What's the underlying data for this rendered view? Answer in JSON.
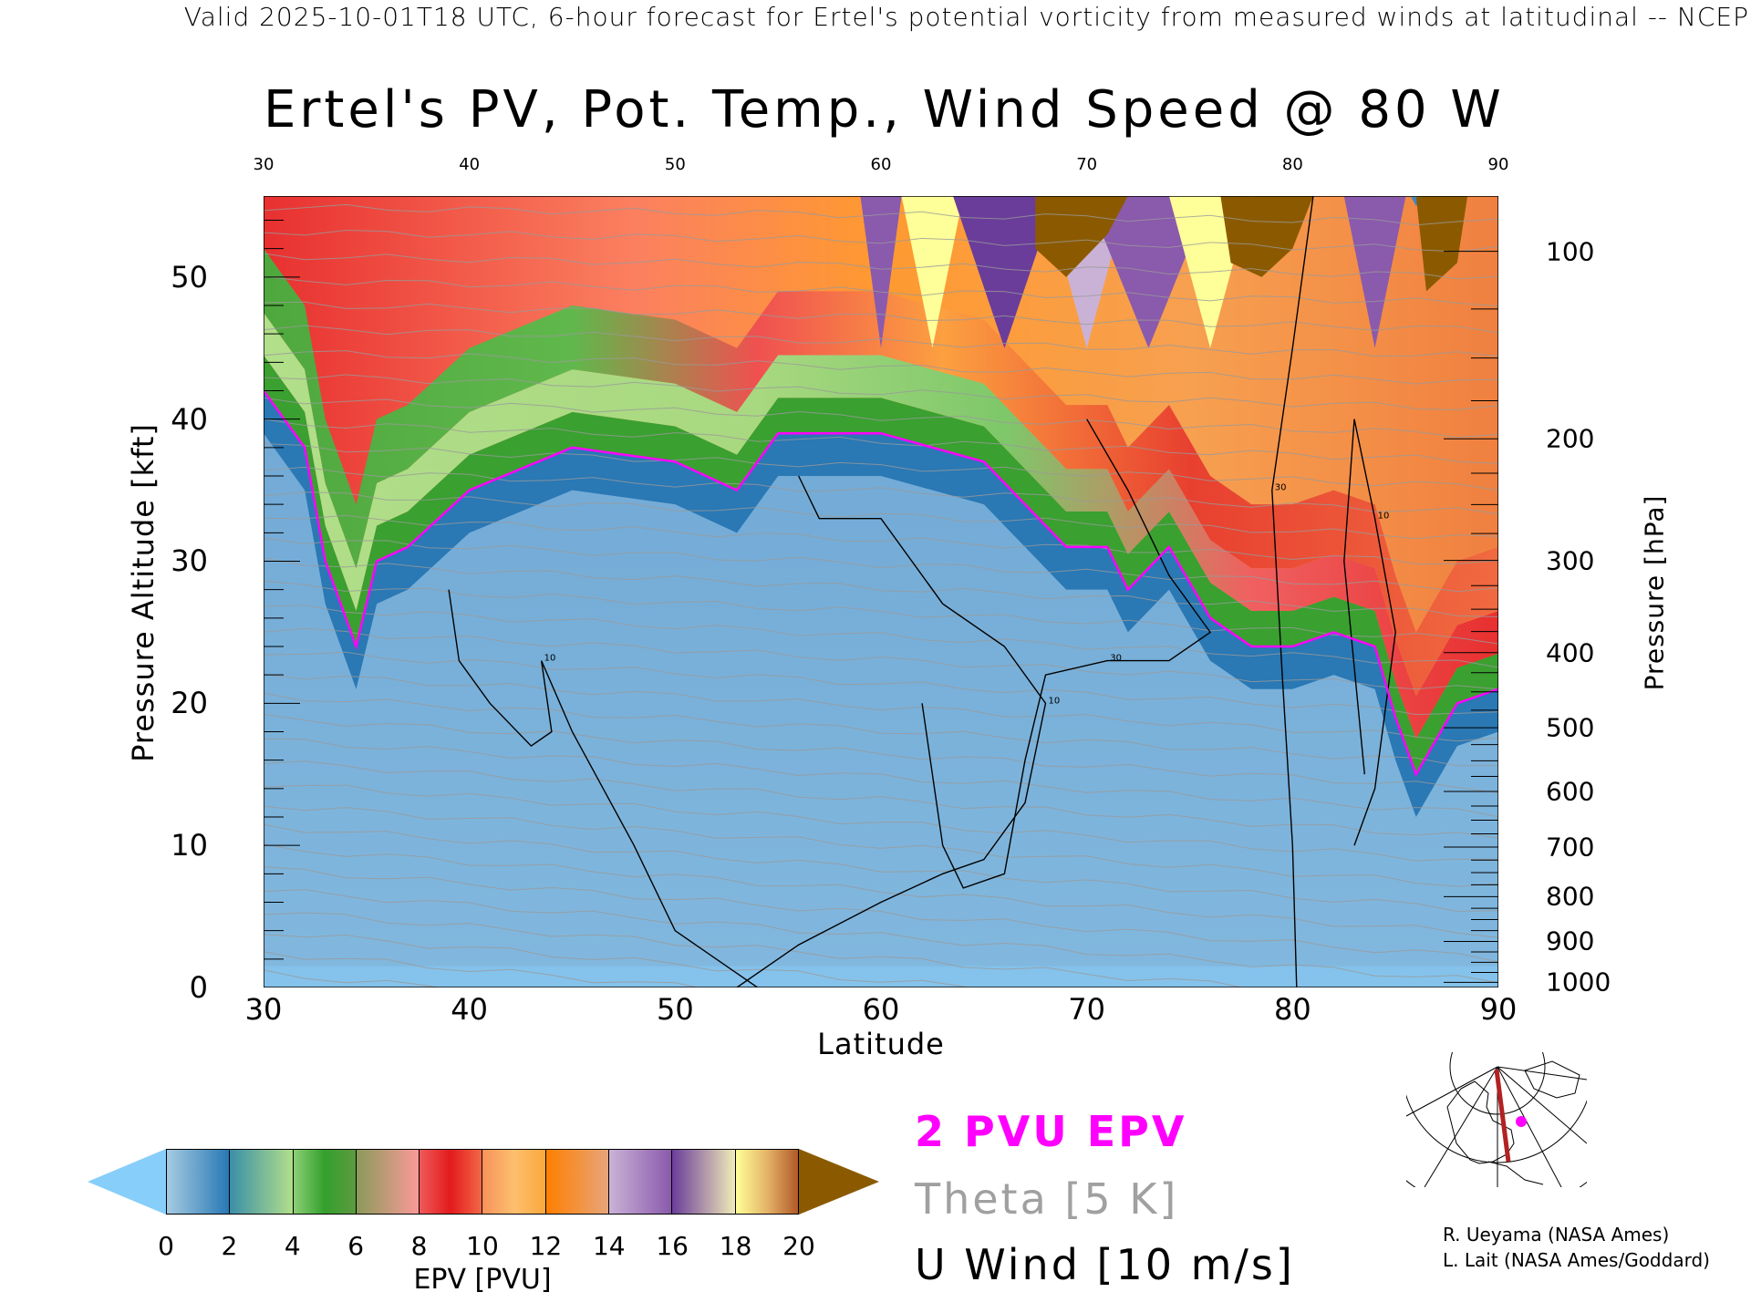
{
  "header": "Valid 2025-10-01T18 UTC, 6-hour forecast for Ertel's potential vorticity from measured winds at latitudinal -- NCEP",
  "chart_data": {
    "type": "heatmap",
    "title": "Ertel's PV, Pot. Temp., Wind Speed @ 80 W",
    "xlabel": "Latitude",
    "ylabel": "Pressure Altitude [kft]",
    "y2label": "Pressure [hPa]",
    "xlim": [
      30,
      90
    ],
    "ylim": [
      0,
      55.7
    ],
    "x_ticks": [
      "30",
      "40",
      "50",
      "60",
      "70",
      "80",
      "90"
    ],
    "top_ticks": [
      "30",
      "40",
      "50",
      "60",
      "70",
      "80",
      "90"
    ],
    "y_ticks": [
      "0",
      "10",
      "20",
      "30",
      "40",
      "50"
    ],
    "pressure_ticks": [
      "100",
      "200",
      "300",
      "400",
      "500",
      "600",
      "700",
      "800",
      "900",
      "1000"
    ],
    "colorbar": {
      "label": "EPV [PVU]",
      "ticks": [
        "0",
        "2",
        "4",
        "6",
        "8",
        "10",
        "12",
        "14",
        "16",
        "18",
        "20"
      ],
      "under_color": "#87cefa",
      "over_color": "#8b5a00",
      "segments": [
        [
          "#a6cbe2",
          "#2878b5"
        ],
        [
          "#3a8fa8",
          "#b2df8a"
        ],
        [
          "#8ccf76",
          "#33a02c",
          "#5d9a40"
        ],
        [
          "#8a9a5a",
          "#fb9a99"
        ],
        [
          "#ef5a5a",
          "#e31a1c",
          "#f26848"
        ],
        [
          "#f7925a",
          "#fdbf6f",
          "#fca83c"
        ],
        [
          "#ff7f00",
          "#e7a57a"
        ],
        [
          "#cab2d6",
          "#8a5aac"
        ],
        [
          "#6a3d9a",
          "#f1ebb8"
        ],
        [
          "#ffff99",
          "#e4b468",
          "#b15928"
        ]
      ]
    },
    "tropopause_2pvu": {
      "lat": [
        30,
        32,
        33,
        34.5,
        35.5,
        37,
        40,
        45,
        50,
        53,
        55,
        60,
        65,
        67,
        69,
        71,
        72,
        74,
        76,
        78,
        80,
        82,
        84,
        85,
        86,
        88,
        90
      ],
      "kft": [
        42,
        38,
        30,
        24,
        30,
        31,
        35,
        38,
        37,
        35,
        39,
        39,
        37,
        34,
        31,
        31,
        28,
        31,
        26,
        24,
        24,
        25,
        24,
        19,
        15,
        20,
        21
      ]
    },
    "u_wind_contours": [
      {
        "level": "10",
        "lat": [
          39,
          39.5,
          41,
          43,
          44,
          43.5,
          45,
          48,
          50,
          53,
          54
        ],
        "kft": [
          28,
          23,
          20,
          17,
          18,
          23,
          18,
          10,
          4,
          1,
          0
        ]
      },
      {
        "level": "10",
        "lat": [
          53,
          56,
          60,
          63,
          65,
          67,
          68,
          66,
          63,
          60,
          57,
          56
        ],
        "kft": [
          0,
          3,
          6,
          8,
          9,
          13,
          20,
          24,
          27,
          33,
          33,
          36
        ]
      },
      {
        "level": "30",
        "lat": [
          62,
          63,
          64,
          66,
          67,
          68,
          71,
          74,
          76,
          74,
          72,
          70
        ],
        "kft": [
          20,
          10,
          7,
          8,
          16,
          22,
          23,
          23,
          25,
          29,
          35,
          40
        ]
      },
      {
        "level": "30",
        "lat": [
          80.2,
          80,
          79.5,
          79,
          80,
          81
        ],
        "kft": [
          0,
          10,
          22,
          35,
          45,
          55.7
        ]
      },
      {
        "level": "10",
        "lat": [
          83,
          84,
          85,
          84,
          83,
          82.5,
          83.5
        ],
        "kft": [
          10,
          14,
          25,
          33,
          40,
          30,
          15
        ]
      }
    ],
    "theta_interval_K": 5
  },
  "legend": {
    "pv": "2 PVU EPV",
    "theta": "Theta [5 K]",
    "wind": "U Wind [10 m/s]",
    "pv_color": "#ff00ff",
    "theta_color": "#a0a0a0"
  },
  "credits": [
    "R. Ueyama (NASA Ames)",
    "L. Lait (NASA Ames/Goddard)"
  ]
}
